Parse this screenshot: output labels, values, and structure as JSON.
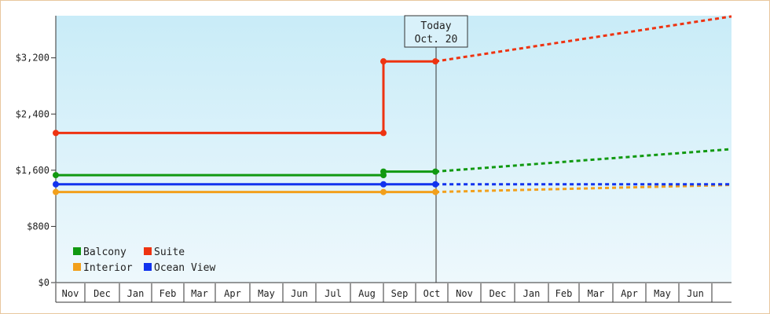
{
  "chart_data": {
    "type": "line",
    "title": "",
    "xlabel": "",
    "ylabel": "",
    "y_ticks": [
      "$0",
      "$800",
      "$1,600",
      "$2,400",
      "$3,200"
    ],
    "y_tick_values": [
      0,
      800,
      1600,
      2400,
      3200
    ],
    "ylim": [
      0,
      3800
    ],
    "months": [
      "Nov",
      "Dec",
      "Jan",
      "Feb",
      "Mar",
      "Apr",
      "May",
      "Jun",
      "Jul",
      "Aug",
      "Sep",
      "Oct",
      "Nov",
      "Dec",
      "Jan",
      "Feb",
      "Mar",
      "Apr",
      "May",
      "Jun"
    ],
    "today": {
      "line1": "Today",
      "line2": "Oct. 20",
      "x": "Oct. 20"
    },
    "grid": false,
    "legend_position": "bottom-left",
    "series": [
      {
        "name": "Balcony",
        "color": "#119911",
        "actual": [
          {
            "x": "Nov 1",
            "y": 1530
          },
          {
            "x": "Sep 1",
            "y": 1530
          },
          {
            "x": "Sep 1",
            "y": 1580
          },
          {
            "x": "Oct 20",
            "y": 1580
          }
        ],
        "forecast": [
          {
            "x": "Oct 20",
            "y": 1580
          },
          {
            "x": "Jul 1",
            "y": 1900
          }
        ]
      },
      {
        "name": "Suite",
        "color": "#ee3311",
        "actual": [
          {
            "x": "Nov 1",
            "y": 2130
          },
          {
            "x": "Sep 1",
            "y": 2130
          },
          {
            "x": "Sep 1",
            "y": 3150
          },
          {
            "x": "Oct 20",
            "y": 3150
          }
        ],
        "forecast": [
          {
            "x": "Oct 20",
            "y": 3150
          },
          {
            "x": "Jul 1",
            "y": 3790
          }
        ]
      },
      {
        "name": "Interior",
        "color": "#f2a01c",
        "actual": [
          {
            "x": "Nov 1",
            "y": 1290
          },
          {
            "x": "Sep 1",
            "y": 1290
          },
          {
            "x": "Oct 20",
            "y": 1290
          }
        ],
        "forecast": [
          {
            "x": "Oct 20",
            "y": 1290
          },
          {
            "x": "Jul 1",
            "y": 1390
          }
        ]
      },
      {
        "name": "Ocean View",
        "color": "#1133ee",
        "actual": [
          {
            "x": "Nov 1",
            "y": 1400
          },
          {
            "x": "Sep 1",
            "y": 1400
          },
          {
            "x": "Oct 20",
            "y": 1400
          }
        ],
        "forecast": [
          {
            "x": "Oct 20",
            "y": 1400
          },
          {
            "x": "Jul 1",
            "y": 1400
          }
        ]
      }
    ],
    "legend": [
      {
        "name": "Balcony",
        "color": "#119911"
      },
      {
        "name": "Suite",
        "color": "#ee3311"
      },
      {
        "name": "Interior",
        "color": "#f2a01c"
      },
      {
        "name": "Ocean View",
        "color": "#1133ee"
      }
    ]
  }
}
